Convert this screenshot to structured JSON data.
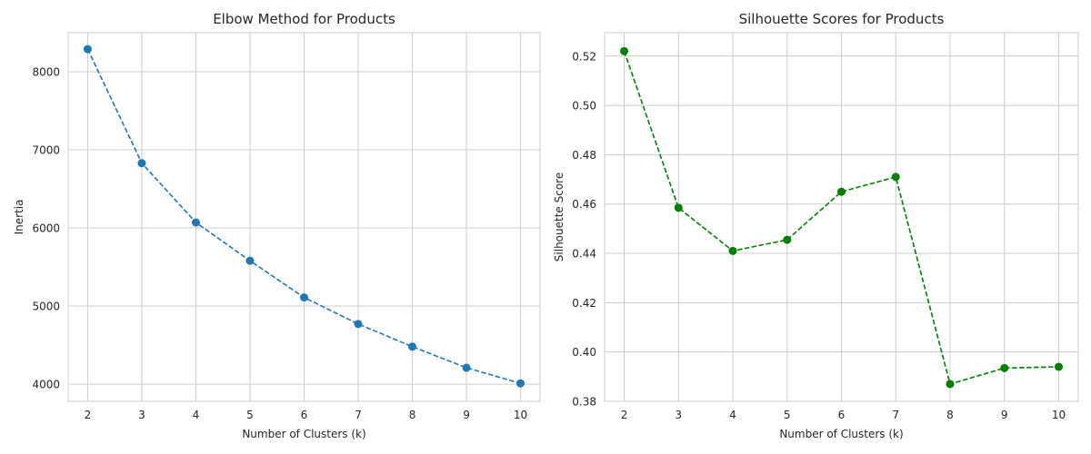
{
  "chart_data": [
    {
      "type": "line",
      "title": "Elbow Method for Products",
      "xlabel": "Number of Clusters (k)",
      "ylabel": "Inertia",
      "xlim": [
        1.64,
        10.36
      ],
      "ylim": [
        3780,
        8500
      ],
      "xticks": [
        2,
        3,
        4,
        5,
        6,
        7,
        8,
        9,
        10
      ],
      "yticks": [
        4000,
        5000,
        6000,
        7000,
        8000
      ],
      "grid": true,
      "series": [
        {
          "color": "#1f77b4",
          "line_style": "dashed",
          "marker": "circle",
          "x": [
            2,
            3,
            4,
            5,
            6,
            7,
            8,
            9,
            10
          ],
          "y": [
            8290,
            6830,
            6070,
            5580,
            5110,
            4770,
            4480,
            4210,
            4010
          ]
        }
      ]
    },
    {
      "type": "line",
      "title": "Silhouette Scores for Products",
      "xlabel": "Number of Clusters (k)",
      "ylabel": "Silhouette Score",
      "xlim": [
        1.64,
        10.36
      ],
      "ylim": [
        0.38,
        0.5295
      ],
      "xticks": [
        2,
        3,
        4,
        5,
        6,
        7,
        8,
        9,
        10
      ],
      "yticks": [
        0.38,
        0.4,
        0.42,
        0.44,
        0.46,
        0.48,
        0.5,
        0.52
      ],
      "ytick_decimals": 2,
      "grid": true,
      "series": [
        {
          "color": "#008000",
          "line_style": "dashed",
          "marker": "circle",
          "x": [
            2,
            3,
            4,
            5,
            6,
            7,
            8,
            9,
            10
          ],
          "y": [
            0.522,
            0.4585,
            0.441,
            0.4455,
            0.465,
            0.471,
            0.387,
            0.3935,
            0.394
          ]
        }
      ]
    }
  ]
}
